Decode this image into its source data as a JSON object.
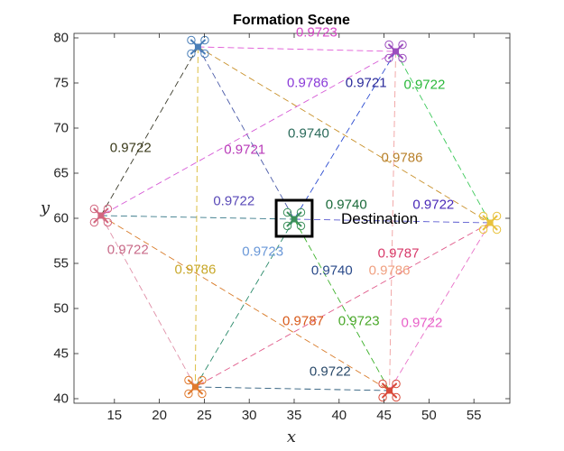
{
  "chart_data": {
    "type": "scatter",
    "title": "Formation Scene",
    "xlabel": "x",
    "ylabel": "y",
    "xlim": [
      10.5,
      59
    ],
    "ylim": [
      39.5,
      80.5
    ],
    "xticks": [
      15,
      20,
      25,
      30,
      35,
      40,
      45,
      50,
      55
    ],
    "yticks": [
      40,
      45,
      50,
      55,
      60,
      65,
      70,
      75,
      80
    ],
    "grid": false,
    "destination": {
      "label": "Destination",
      "x": 35,
      "y": 60,
      "box_half_width": 2,
      "box_half_height": 2
    },
    "agents": [
      {
        "name": "top-left",
        "x": 24.3,
        "y": 79,
        "color": "#4a7fb8"
      },
      {
        "name": "top-right",
        "x": 46.3,
        "y": 78.5,
        "color": "#9b4dbe"
      },
      {
        "name": "left",
        "x": 13.5,
        "y": 60.3,
        "color": "#d2667f"
      },
      {
        "name": "center",
        "x": 35,
        "y": 59.9,
        "color": "#3b8f5b"
      },
      {
        "name": "right",
        "x": 56.8,
        "y": 59.5,
        "color": "#e8c23c"
      },
      {
        "name": "bottom-left",
        "x": 24,
        "y": 41.3,
        "color": "#e07a2e"
      },
      {
        "name": "bottom-right",
        "x": 45.6,
        "y": 40.9,
        "color": "#d84a3a"
      }
    ],
    "edges": [
      {
        "from": 0,
        "to": 1,
        "color": "#e05ad6"
      },
      {
        "from": 0,
        "to": 2,
        "color": "#3a3a2a"
      },
      {
        "from": 0,
        "to": 3,
        "color": "#4a5aa8"
      },
      {
        "from": 0,
        "to": 4,
        "color": "#c8902a"
      },
      {
        "from": 0,
        "to": 5,
        "color": "#d8b830"
      },
      {
        "from": 1,
        "to": 2,
        "color": "#d65ad6"
      },
      {
        "from": 1,
        "to": 3,
        "color": "#2a4ad0"
      },
      {
        "from": 1,
        "to": 4,
        "color": "#3ac858"
      },
      {
        "from": 1,
        "to": 6,
        "color": "#f0a0a0"
      },
      {
        "from": 2,
        "to": 3,
        "color": "#3a7a8a"
      },
      {
        "from": 2,
        "to": 5,
        "color": "#e090a8"
      },
      {
        "from": 2,
        "to": 6,
        "color": "#d87a28"
      },
      {
        "from": 3,
        "to": 4,
        "color": "#5a5ad0"
      },
      {
        "from": 3,
        "to": 5,
        "color": "#2a8a6a"
      },
      {
        "from": 3,
        "to": 6,
        "color": "#3ab028"
      },
      {
        "from": 4,
        "to": 5,
        "color": "#e05a8a"
      },
      {
        "from": 4,
        "to": 6,
        "color": "#e870c8"
      },
      {
        "from": 5,
        "to": 6,
        "color": "#2a5a7a"
      }
    ],
    "annotations": [
      {
        "text": "0.9723",
        "x": 37.5,
        "y": 80.6,
        "color": "#d84ac8"
      },
      {
        "text": "0.9786",
        "x": 36.5,
        "y": 75.0,
        "color": "#8a3ad8"
      },
      {
        "text": "0.9721",
        "x": 43.0,
        "y": 75.0,
        "color": "#2a2a9a"
      },
      {
        "text": "0.9722",
        "x": 49.5,
        "y": 74.8,
        "color": "#2ab83a"
      },
      {
        "text": "0.9722",
        "x": 16.8,
        "y": 67.8,
        "color": "#3a3a1a"
      },
      {
        "text": "0.9721",
        "x": 29.5,
        "y": 67.6,
        "color": "#b83ab8"
      },
      {
        "text": "0.9740",
        "x": 36.6,
        "y": 69.4,
        "color": "#2a6a5a"
      },
      {
        "text": "0.9786",
        "x": 47.0,
        "y": 66.7,
        "color": "#b8802a"
      },
      {
        "text": "0.9722",
        "x": 28.3,
        "y": 61.9,
        "color": "#5a4ab8"
      },
      {
        "text": "0.9740",
        "x": 40.8,
        "y": 61.5,
        "color": "#1a6a3a"
      },
      {
        "text": "0.9722",
        "x": 50.5,
        "y": 61.5,
        "color": "#4a2ab8"
      },
      {
        "text": "0.9722",
        "x": 16.5,
        "y": 56.5,
        "color": "#c86a88"
      },
      {
        "text": "0.9723",
        "x": 31.5,
        "y": 56.3,
        "color": "#6a98d8"
      },
      {
        "text": "0.9787",
        "x": 46.6,
        "y": 56.1,
        "color": "#d83a6a"
      },
      {
        "text": "0.9786",
        "x": 24.0,
        "y": 54.3,
        "color": "#c8a82a"
      },
      {
        "text": "0.9740",
        "x": 39.2,
        "y": 54.2,
        "color": "#2a4a8a"
      },
      {
        "text": "0.9786",
        "x": 45.6,
        "y": 54.2,
        "color": "#f0a080"
      },
      {
        "text": "0.9787",
        "x": 36.0,
        "y": 48.6,
        "color": "#d85a1a"
      },
      {
        "text": "0.9723",
        "x": 42.2,
        "y": 48.6,
        "color": "#4aa82a"
      },
      {
        "text": "0.9722",
        "x": 49.2,
        "y": 48.4,
        "color": "#e860c8"
      },
      {
        "text": "0.9722",
        "x": 39.0,
        "y": 43.0,
        "color": "#2a4a6a"
      }
    ]
  }
}
